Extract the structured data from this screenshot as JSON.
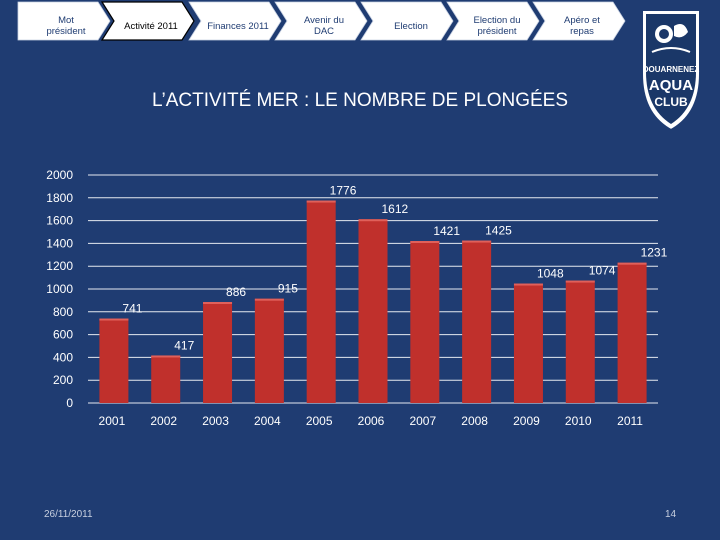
{
  "nav": {
    "items": [
      {
        "label": "Mot président",
        "active": false
      },
      {
        "label": "Activité 2011",
        "active": true
      },
      {
        "label": "Finances 2011",
        "active": false
      },
      {
        "label": "Avenir du DAC",
        "active": false
      },
      {
        "label": "Election",
        "active": false
      },
      {
        "label": "Election du président",
        "active": false
      },
      {
        "label": "Apéro et repas",
        "active": false
      }
    ]
  },
  "logo": {
    "line1": "DOUARNENEZ",
    "line2": "AQUA",
    "line3": "CLUB"
  },
  "slide": {
    "title": "L’ACTIVITÉ MER : LE NOMBRE DE PLONGÉES"
  },
  "chart_data": {
    "type": "bar",
    "categories": [
      "2001",
      "2002",
      "2003",
      "2004",
      "2005",
      "2006",
      "2007",
      "2008",
      "2009",
      "2010",
      "2011"
    ],
    "values": [
      741,
      417,
      886,
      915,
      1776,
      1612,
      1421,
      1425,
      1048,
      1074,
      1231
    ],
    "data_labels": [
      "741",
      "417",
      "886",
      "915",
      "1776",
      "1612",
      "1421",
      "1425",
      "1048",
      "1074",
      "1231"
    ],
    "y_ticks": [
      "2000",
      "1800",
      "1600",
      "1400",
      "1200",
      "1000",
      "800",
      "600",
      "400",
      "200",
      "0"
    ],
    "ylim": [
      0,
      2000
    ],
    "title": "",
    "xlabel": "",
    "ylabel": "",
    "grid": true,
    "bar_color": "#c0302c",
    "legend": "none"
  },
  "footer": {
    "date": "26/11/2011",
    "page": "14"
  },
  "colors": {
    "background": "#1f3c72",
    "tab_active": "#ffffff",
    "tab_inactive": "#ffffff",
    "bar": "#c0302c"
  }
}
